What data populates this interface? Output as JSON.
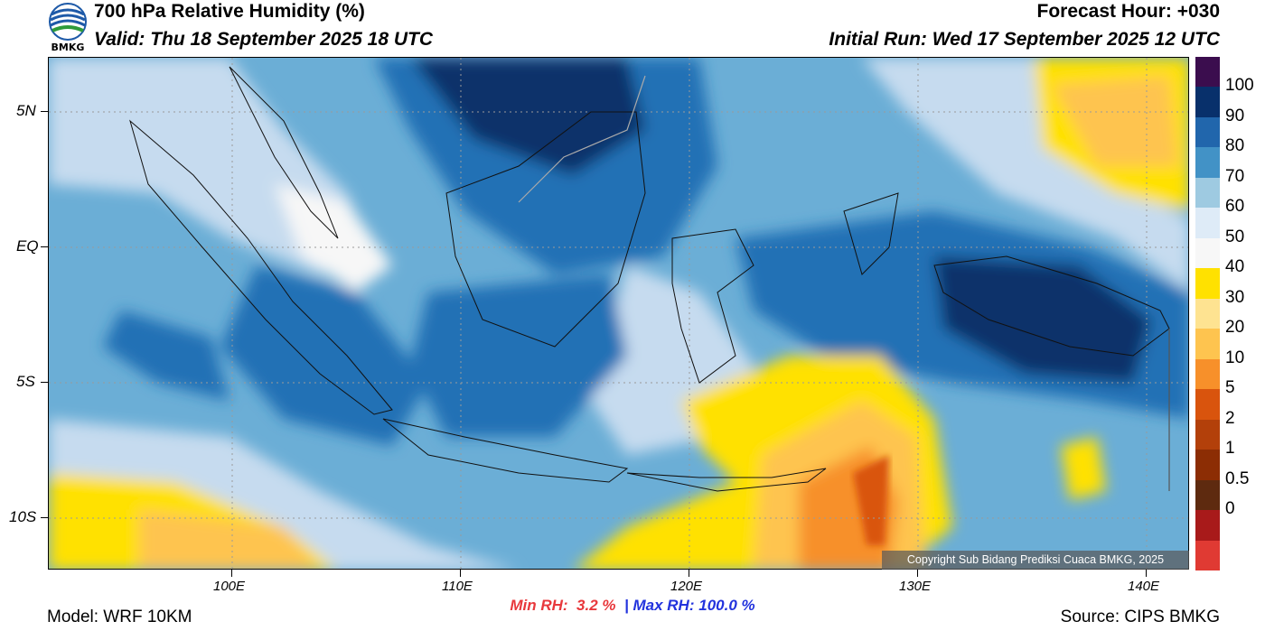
{
  "header": {
    "title": "700 hPa Relative Humidity (%)",
    "valid": "Valid: Thu 18 September 2025 18 UTC",
    "forecast_hour": "Forecast Hour: +030",
    "initial_run": "Initial Run: Wed 17 September 2025 12 UTC"
  },
  "logo": {
    "text": "BMKG",
    "icon": "bmkg-logo-icon"
  },
  "map": {
    "lat_labels": [
      "5N",
      "EQ",
      "5S",
      "10S"
    ],
    "lon_labels": [
      "100E",
      "110E",
      "120E",
      "130E",
      "140E"
    ],
    "copyright": "Copyright Sub Bidang Prediksi Cuaca BMKG, 2025",
    "colors": {
      "very_moist": "#08306b",
      "moist": "#2171b5",
      "medium": "#6baed6",
      "light": "#c6dbef",
      "neutral": "#f7f7f7",
      "dry_yellow": "#ffe100",
      "dry_orange": "#f4a340"
    }
  },
  "colorbar": {
    "labels": [
      "100",
      "90",
      "80",
      "70",
      "60",
      "50",
      "40",
      "30",
      "20",
      "10",
      "5",
      "2",
      "1",
      "0.5",
      "0"
    ],
    "colors": [
      "#3b0d4e",
      "#08306b",
      "#2166ac",
      "#4292c6",
      "#9ecae1",
      "#deebf7",
      "#f7f7f7",
      "#ffe100",
      "#fee391",
      "#fec44f",
      "#f7902a",
      "#d9540d",
      "#b3400a",
      "#8c2d04",
      "#5e2a0f",
      "#a81a1a",
      "#e03a33"
    ]
  },
  "stats": {
    "min_label": "Min RH:",
    "min_value": "3.2 %",
    "separator": "|",
    "max_label": "Max RH:",
    "max_value": "100.0 %"
  },
  "footer": {
    "model": "Model: WRF 10KM",
    "source": "Source: CIPS BMKG"
  }
}
